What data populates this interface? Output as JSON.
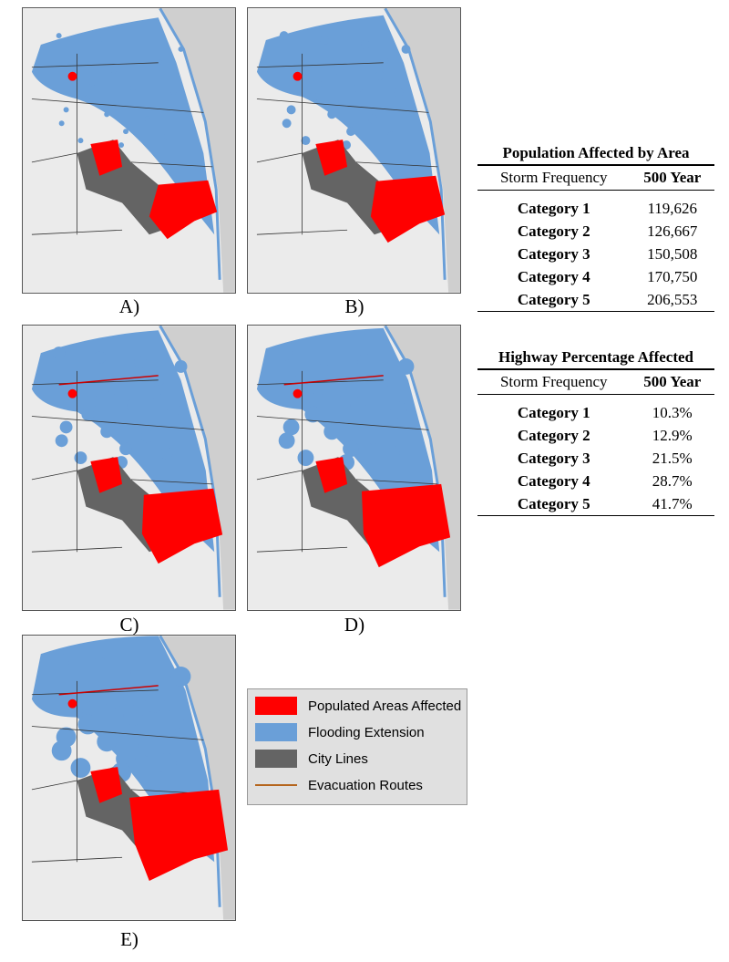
{
  "panels": [
    {
      "label": "A)"
    },
    {
      "label": "B)"
    },
    {
      "label": "C)"
    },
    {
      "label": "D)"
    },
    {
      "label": "E)"
    }
  ],
  "tables": [
    {
      "title": "Population Affected by Area",
      "header": [
        "Storm Frequency",
        "500 Year"
      ],
      "rows": [
        [
          "Category 1",
          "119,626"
        ],
        [
          "Category 2",
          "126,667"
        ],
        [
          "Category 3",
          "150,508"
        ],
        [
          "Category 4",
          "170,750"
        ],
        [
          "Category 5",
          "206,553"
        ]
      ]
    },
    {
      "title": "Highway Percentage Affected",
      "header": [
        "Storm Frequency",
        "500 Year"
      ],
      "rows": [
        [
          "Category 1",
          "10.3%"
        ],
        [
          "Category 2",
          "12.9%"
        ],
        [
          "Category 3",
          "21.5%"
        ],
        [
          "Category 4",
          "28.7%"
        ],
        [
          "Category 5",
          "41.7%"
        ]
      ]
    }
  ],
  "legend": [
    {
      "label": "Populated Areas Affected"
    },
    {
      "label": "Flooding Extension"
    },
    {
      "label": "City Lines"
    },
    {
      "label": "Evacuation Routes"
    }
  ]
}
